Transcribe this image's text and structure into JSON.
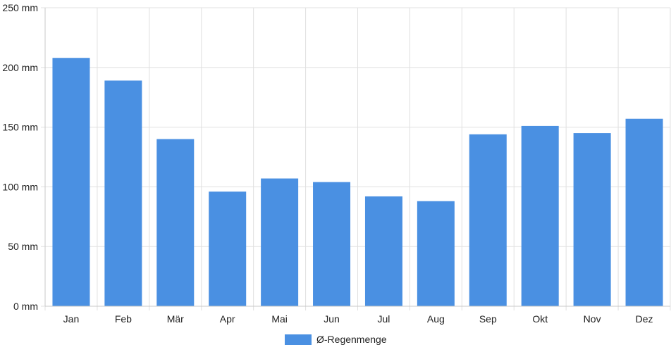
{
  "chart_data": {
    "type": "bar",
    "categories": [
      "Jan",
      "Feb",
      "Mär",
      "Apr",
      "Mai",
      "Jun",
      "Jul",
      "Aug",
      "Sep",
      "Okt",
      "Nov",
      "Dez"
    ],
    "series": [
      {
        "name": "Ø-Regenmenge",
        "values": [
          208,
          189,
          140,
          96,
          107,
          104,
          92,
          88,
          144,
          151,
          145,
          157
        ]
      }
    ],
    "ylim": [
      0,
      250
    ],
    "yticks": [
      0,
      50,
      100,
      150,
      200,
      250
    ],
    "ytick_labels": [
      "0 mm",
      "50 mm",
      "100 mm",
      "150 mm",
      "200 mm",
      "250 mm"
    ],
    "grid": true,
    "legend_position": "bottom",
    "colors": {
      "bar": "#4a90e2",
      "grid": "#e0e0e0",
      "axis": "#c8c8c8"
    }
  }
}
